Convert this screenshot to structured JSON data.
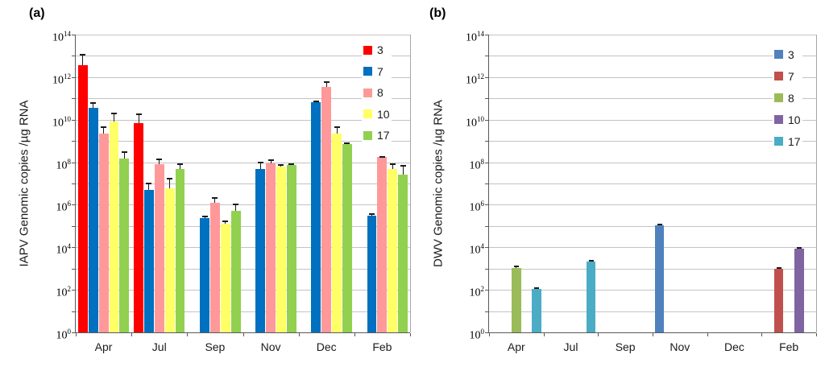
{
  "chart_data": [
    {
      "type": "bar",
      "panel_label": "(a)",
      "ylabel": "IAPV Genomic copies /µg RNA",
      "categories": [
        "Apr",
        "Jul",
        "Sep",
        "Nov",
        "Dec",
        "Feb"
      ],
      "y_axis": {
        "scale": "log10",
        "base_label": "10",
        "tick_exponents": [
          14,
          12,
          10,
          8,
          6,
          4,
          2,
          0
        ],
        "min_exponent": 0,
        "max_exponent": 14,
        "gridlines_every_decade": true
      },
      "legend_position": "top-right-inside",
      "series": [
        {
          "name": "3",
          "color": "#FF0000",
          "values": [
            3500000000000.0,
            7000000000.0,
            null,
            null,
            null,
            null
          ],
          "errors_upper": [
            11000000000000.0,
            18000000000.0,
            null,
            null,
            null,
            null
          ]
        },
        {
          "name": "7",
          "color": "#0070C0",
          "values": [
            35000000000.0,
            5000000.0,
            230000.0,
            50000000.0,
            65000000000.0,
            300000.0
          ],
          "errors_upper": [
            60000000000.0,
            10000000.0,
            270000.0,
            100000000.0,
            75000000000.0,
            360000.0
          ]
        },
        {
          "name": "8",
          "color": "#FF9999",
          "values": [
            2200000000.0,
            78000000.0,
            1200000.0,
            85000000.0,
            350000000000.0,
            170000000.0
          ],
          "errors_upper": [
            4500000000.0,
            140000000.0,
            2000000.0,
            130000000.0,
            600000000000.0,
            180000000.0
          ]
        },
        {
          "name": "10",
          "color": "#FFFF66",
          "values": [
            8000000000.0,
            6000000.0,
            130000.0,
            60000000.0,
            2300000000.0,
            48000000.0
          ],
          "errors_upper": [
            20000000000.0,
            17000000.0,
            160000.0,
            75000000.0,
            4500000000.0,
            80000000.0
          ]
        },
        {
          "name": "17",
          "color": "#92D050",
          "values": [
            150000000.0,
            48000000.0,
            500000.0,
            75000000.0,
            700000000.0,
            27000000.0
          ],
          "errors_upper": [
            300000000.0,
            80000000.0,
            1000000.0,
            80000000.0,
            780000000.0,
            70000000.0
          ]
        }
      ]
    },
    {
      "type": "bar",
      "panel_label": "(b)",
      "ylabel": "DWV Genomic copies /µg RNA",
      "categories": [
        "Apr",
        "Jul",
        "Sep",
        "Nov",
        "Dec",
        "Feb"
      ],
      "y_axis": {
        "scale": "log10",
        "base_label": "10",
        "tick_exponents": [
          14,
          12,
          10,
          8,
          6,
          4,
          2,
          0
        ],
        "min_exponent": 0,
        "max_exponent": 14,
        "gridlines_every_decade": true
      },
      "legend_position": "top-right-inside",
      "series": [
        {
          "name": "3",
          "color": "#4F81BD",
          "values": [
            null,
            null,
            null,
            110000.0,
            null,
            null
          ],
          "errors_upper": [
            null,
            null,
            null,
            120000.0,
            null,
            null
          ]
        },
        {
          "name": "7",
          "color": "#C0504D",
          "values": [
            null,
            null,
            null,
            null,
            null,
            1000.0
          ],
          "errors_upper": [
            null,
            null,
            null,
            null,
            null,
            1100.0
          ]
        },
        {
          "name": "8",
          "color": "#9BBB59",
          "values": [
            1100.0,
            null,
            null,
            null,
            null,
            null
          ],
          "errors_upper": [
            1250.0,
            null,
            null,
            null,
            null,
            null
          ]
        },
        {
          "name": "10",
          "color": "#8064A2",
          "values": [
            null,
            null,
            null,
            null,
            null,
            8500.0
          ],
          "errors_upper": [
            null,
            null,
            null,
            null,
            null,
            9200.0
          ]
        },
        {
          "name": "17",
          "color": "#4BACC6",
          "values": [
            110.0,
            2100.0,
            null,
            null,
            null,
            null
          ],
          "errors_upper": [
            125.0,
            2250.0,
            null,
            null,
            null,
            null
          ]
        }
      ]
    }
  ]
}
